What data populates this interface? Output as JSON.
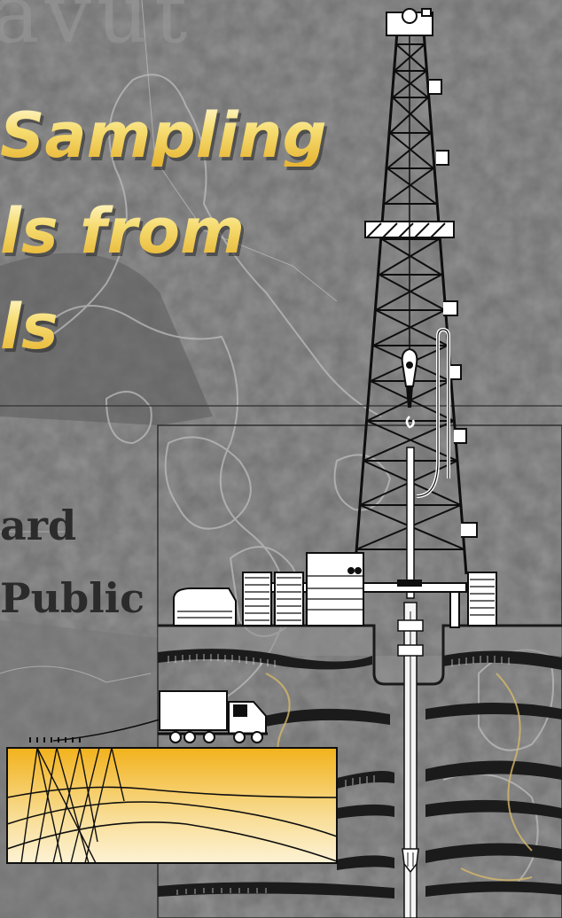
{
  "page": {
    "ghost_title": "avut",
    "title_lines": [
      "Sampling",
      "ls from",
      "ls"
    ],
    "body_lines": [
      "ard",
      "Public"
    ]
  },
  "colors": {
    "title_gold": "#f0c94a",
    "seismic_gold": "#f2b21c",
    "derrick": "#111111",
    "background_gray": "#6b6b6b"
  },
  "icons": [
    "drilling-derrick-icon",
    "truck-icon",
    "seismic-panel-icon",
    "storage-tank-icon",
    "drill-bit-icon"
  ]
}
